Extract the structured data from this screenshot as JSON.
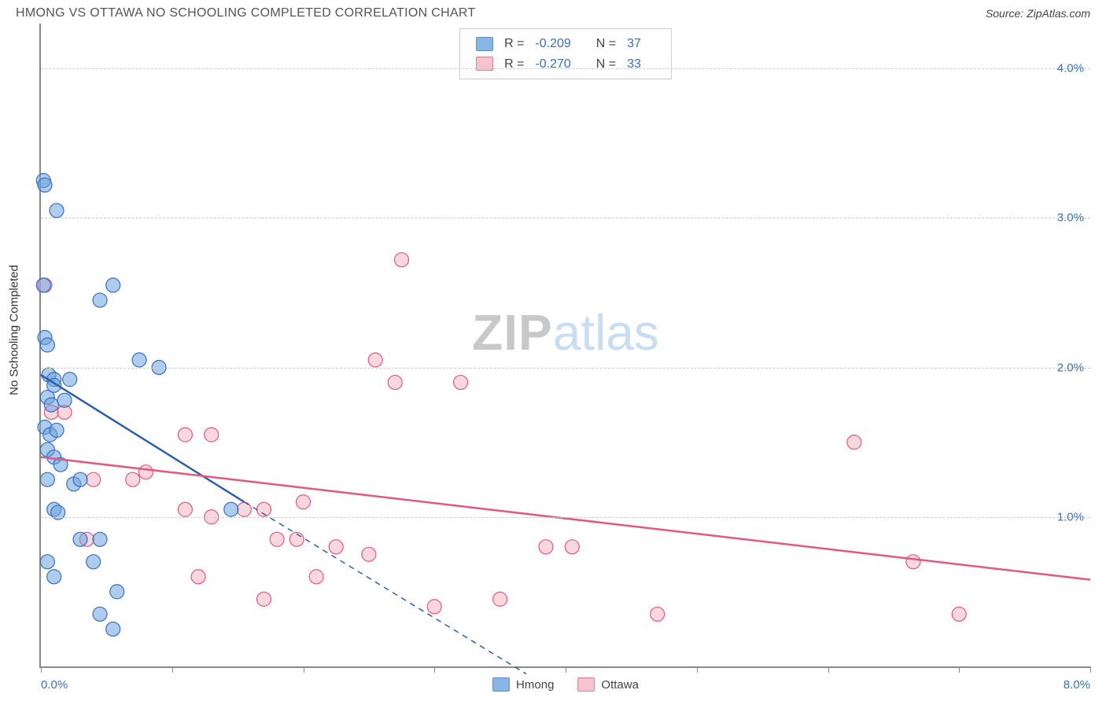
{
  "header": {
    "title": "HMONG VS OTTAWA NO SCHOOLING COMPLETED CORRELATION CHART",
    "source": "Source: ZipAtlas.com"
  },
  "watermark": {
    "part1": "ZIP",
    "part2": "atlas"
  },
  "chart": {
    "type": "scatter",
    "ylabel": "No Schooling Completed",
    "background_color": "#ffffff",
    "grid_color": "#cccccc",
    "axis_color": "#888888",
    "tick_label_color": "#3b6fb6",
    "xlim": [
      0,
      8
    ],
    "ylim": [
      0,
      4.3
    ],
    "xtick_positions": [
      0,
      1,
      2,
      3,
      4,
      5,
      6,
      7,
      8
    ],
    "xtick_labels": {
      "0": "0.0%",
      "8": "8.0%"
    },
    "ytick_positions": [
      1,
      2,
      3,
      4
    ],
    "ytick_labels": {
      "1": "1.0%",
      "2": "2.0%",
      "3": "3.0%",
      "4": "4.0%"
    },
    "point_radius": 9,
    "point_opacity": 0.55,
    "line_width": 2.5,
    "series": {
      "hmong": {
        "label": "Hmong",
        "color": "#6aa3e0",
        "stroke": "#3b6fb6",
        "line_color": "#2d5fa8",
        "stats": {
          "R": "-0.209",
          "N": "37"
        },
        "trend": {
          "x1": 0.0,
          "y1": 1.95,
          "x2": 1.55,
          "y2": 1.1,
          "x2_ext": 3.7,
          "y2_ext": -0.05
        },
        "points": [
          [
            0.02,
            3.25
          ],
          [
            0.03,
            3.22
          ],
          [
            0.12,
            3.05
          ],
          [
            0.55,
            2.55
          ],
          [
            0.45,
            2.45
          ],
          [
            0.03,
            2.2
          ],
          [
            0.05,
            2.15
          ],
          [
            0.75,
            2.05
          ],
          [
            0.9,
            2.0
          ],
          [
            0.06,
            1.95
          ],
          [
            0.1,
            1.92
          ],
          [
            0.02,
            2.55
          ],
          [
            0.05,
            1.8
          ],
          [
            0.08,
            1.75
          ],
          [
            0.03,
            1.6
          ],
          [
            0.07,
            1.55
          ],
          [
            0.05,
            1.45
          ],
          [
            0.1,
            1.4
          ],
          [
            0.15,
            1.35
          ],
          [
            0.05,
            1.25
          ],
          [
            0.25,
            1.22
          ],
          [
            0.1,
            1.05
          ],
          [
            0.13,
            1.03
          ],
          [
            1.45,
            1.05
          ],
          [
            0.3,
            0.85
          ],
          [
            0.45,
            0.85
          ],
          [
            0.05,
            0.7
          ],
          [
            0.58,
            0.5
          ],
          [
            0.45,
            0.35
          ],
          [
            0.55,
            0.25
          ],
          [
            0.22,
            1.92
          ],
          [
            0.18,
            1.78
          ],
          [
            0.12,
            1.58
          ],
          [
            0.3,
            1.25
          ],
          [
            0.4,
            0.7
          ],
          [
            0.1,
            0.6
          ],
          [
            0.1,
            1.88
          ]
        ]
      },
      "ottawa": {
        "label": "Ottawa",
        "color": "#f2b6c4",
        "stroke": "#e05a7d",
        "line_color": "#e05a7d",
        "stats": {
          "R": "-0.270",
          "N": "33"
        },
        "trend": {
          "x1": 0.0,
          "y1": 1.4,
          "x2": 8.0,
          "y2": 0.58
        },
        "points": [
          [
            2.75,
            2.72
          ],
          [
            2.55,
            2.05
          ],
          [
            2.7,
            1.9
          ],
          [
            3.2,
            1.9
          ],
          [
            0.03,
            2.55
          ],
          [
            0.08,
            1.7
          ],
          [
            0.18,
            1.7
          ],
          [
            1.1,
            1.55
          ],
          [
            1.3,
            1.55
          ],
          [
            0.4,
            1.25
          ],
          [
            0.7,
            1.25
          ],
          [
            0.8,
            1.3
          ],
          [
            6.2,
            1.5
          ],
          [
            2.0,
            1.1
          ],
          [
            1.1,
            1.05
          ],
          [
            1.3,
            1.0
          ],
          [
            1.55,
            1.05
          ],
          [
            1.7,
            1.05
          ],
          [
            0.35,
            0.85
          ],
          [
            1.8,
            0.85
          ],
          [
            1.95,
            0.85
          ],
          [
            2.25,
            0.8
          ],
          [
            2.5,
            0.75
          ],
          [
            3.85,
            0.8
          ],
          [
            4.05,
            0.8
          ],
          [
            1.2,
            0.6
          ],
          [
            2.1,
            0.6
          ],
          [
            1.7,
            0.45
          ],
          [
            3.0,
            0.4
          ],
          [
            3.5,
            0.45
          ],
          [
            4.7,
            0.35
          ],
          [
            6.65,
            0.7
          ],
          [
            7.0,
            0.35
          ]
        ]
      }
    }
  }
}
